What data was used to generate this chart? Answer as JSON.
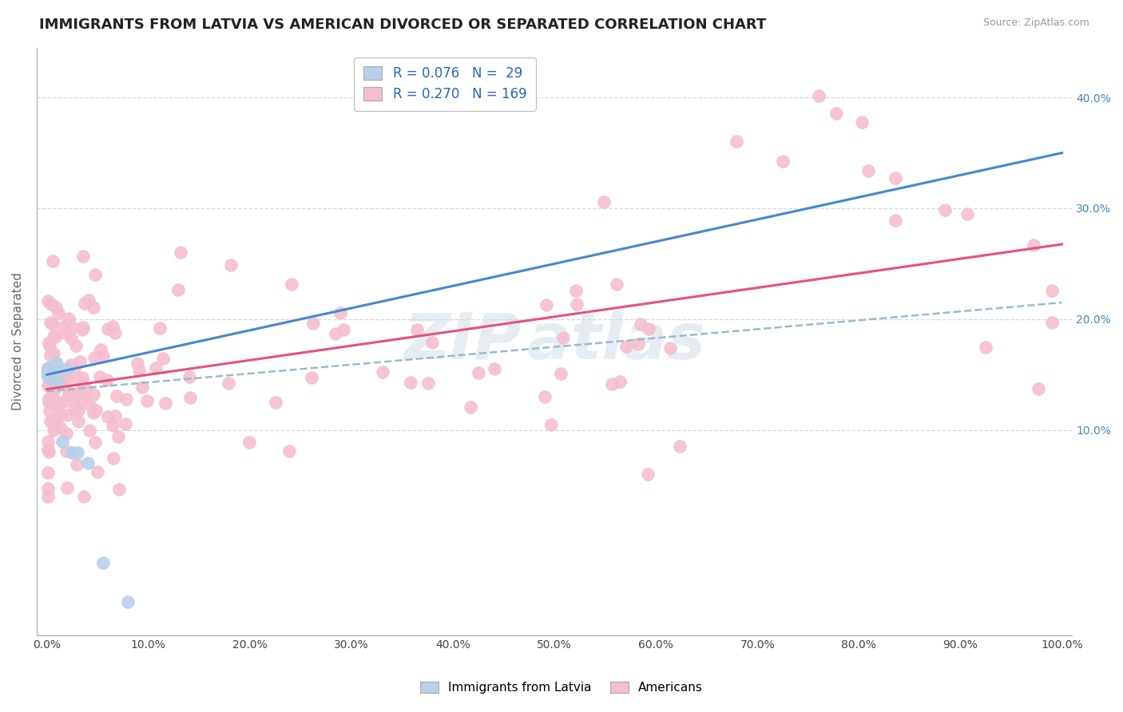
{
  "title": "IMMIGRANTS FROM LATVIA VS AMERICAN DIVORCED OR SEPARATED CORRELATION CHART",
  "source": "Source: ZipAtlas.com",
  "ylabel": "Divorced or Separated",
  "legend_labels": [
    "Immigrants from Latvia",
    "Americans"
  ],
  "R_latvia": 0.076,
  "N_latvia": 29,
  "R_americans": 0.27,
  "N_americans": 169,
  "background_color": "#ffffff",
  "grid_color": "#d0d8e0",
  "latvia_color": "#b8d0ea",
  "latvia_edge": "#b8d0ea",
  "americans_color": "#f5bece",
  "americans_edge": "#f5bece",
  "trend_latvia_color": "#4488cc",
  "trend_americans_color": "#e8507a",
  "dashed_color": "#99bbcc",
  "title_fontsize": 13,
  "axis_label_fontsize": 11,
  "tick_fontsize": 10,
  "legend_fontsize": 12,
  "watermark_color": "#ccdde8",
  "watermark_alpha": 0.5,
  "ytick_color": "#4488bb",
  "xtick_color": "#444444"
}
